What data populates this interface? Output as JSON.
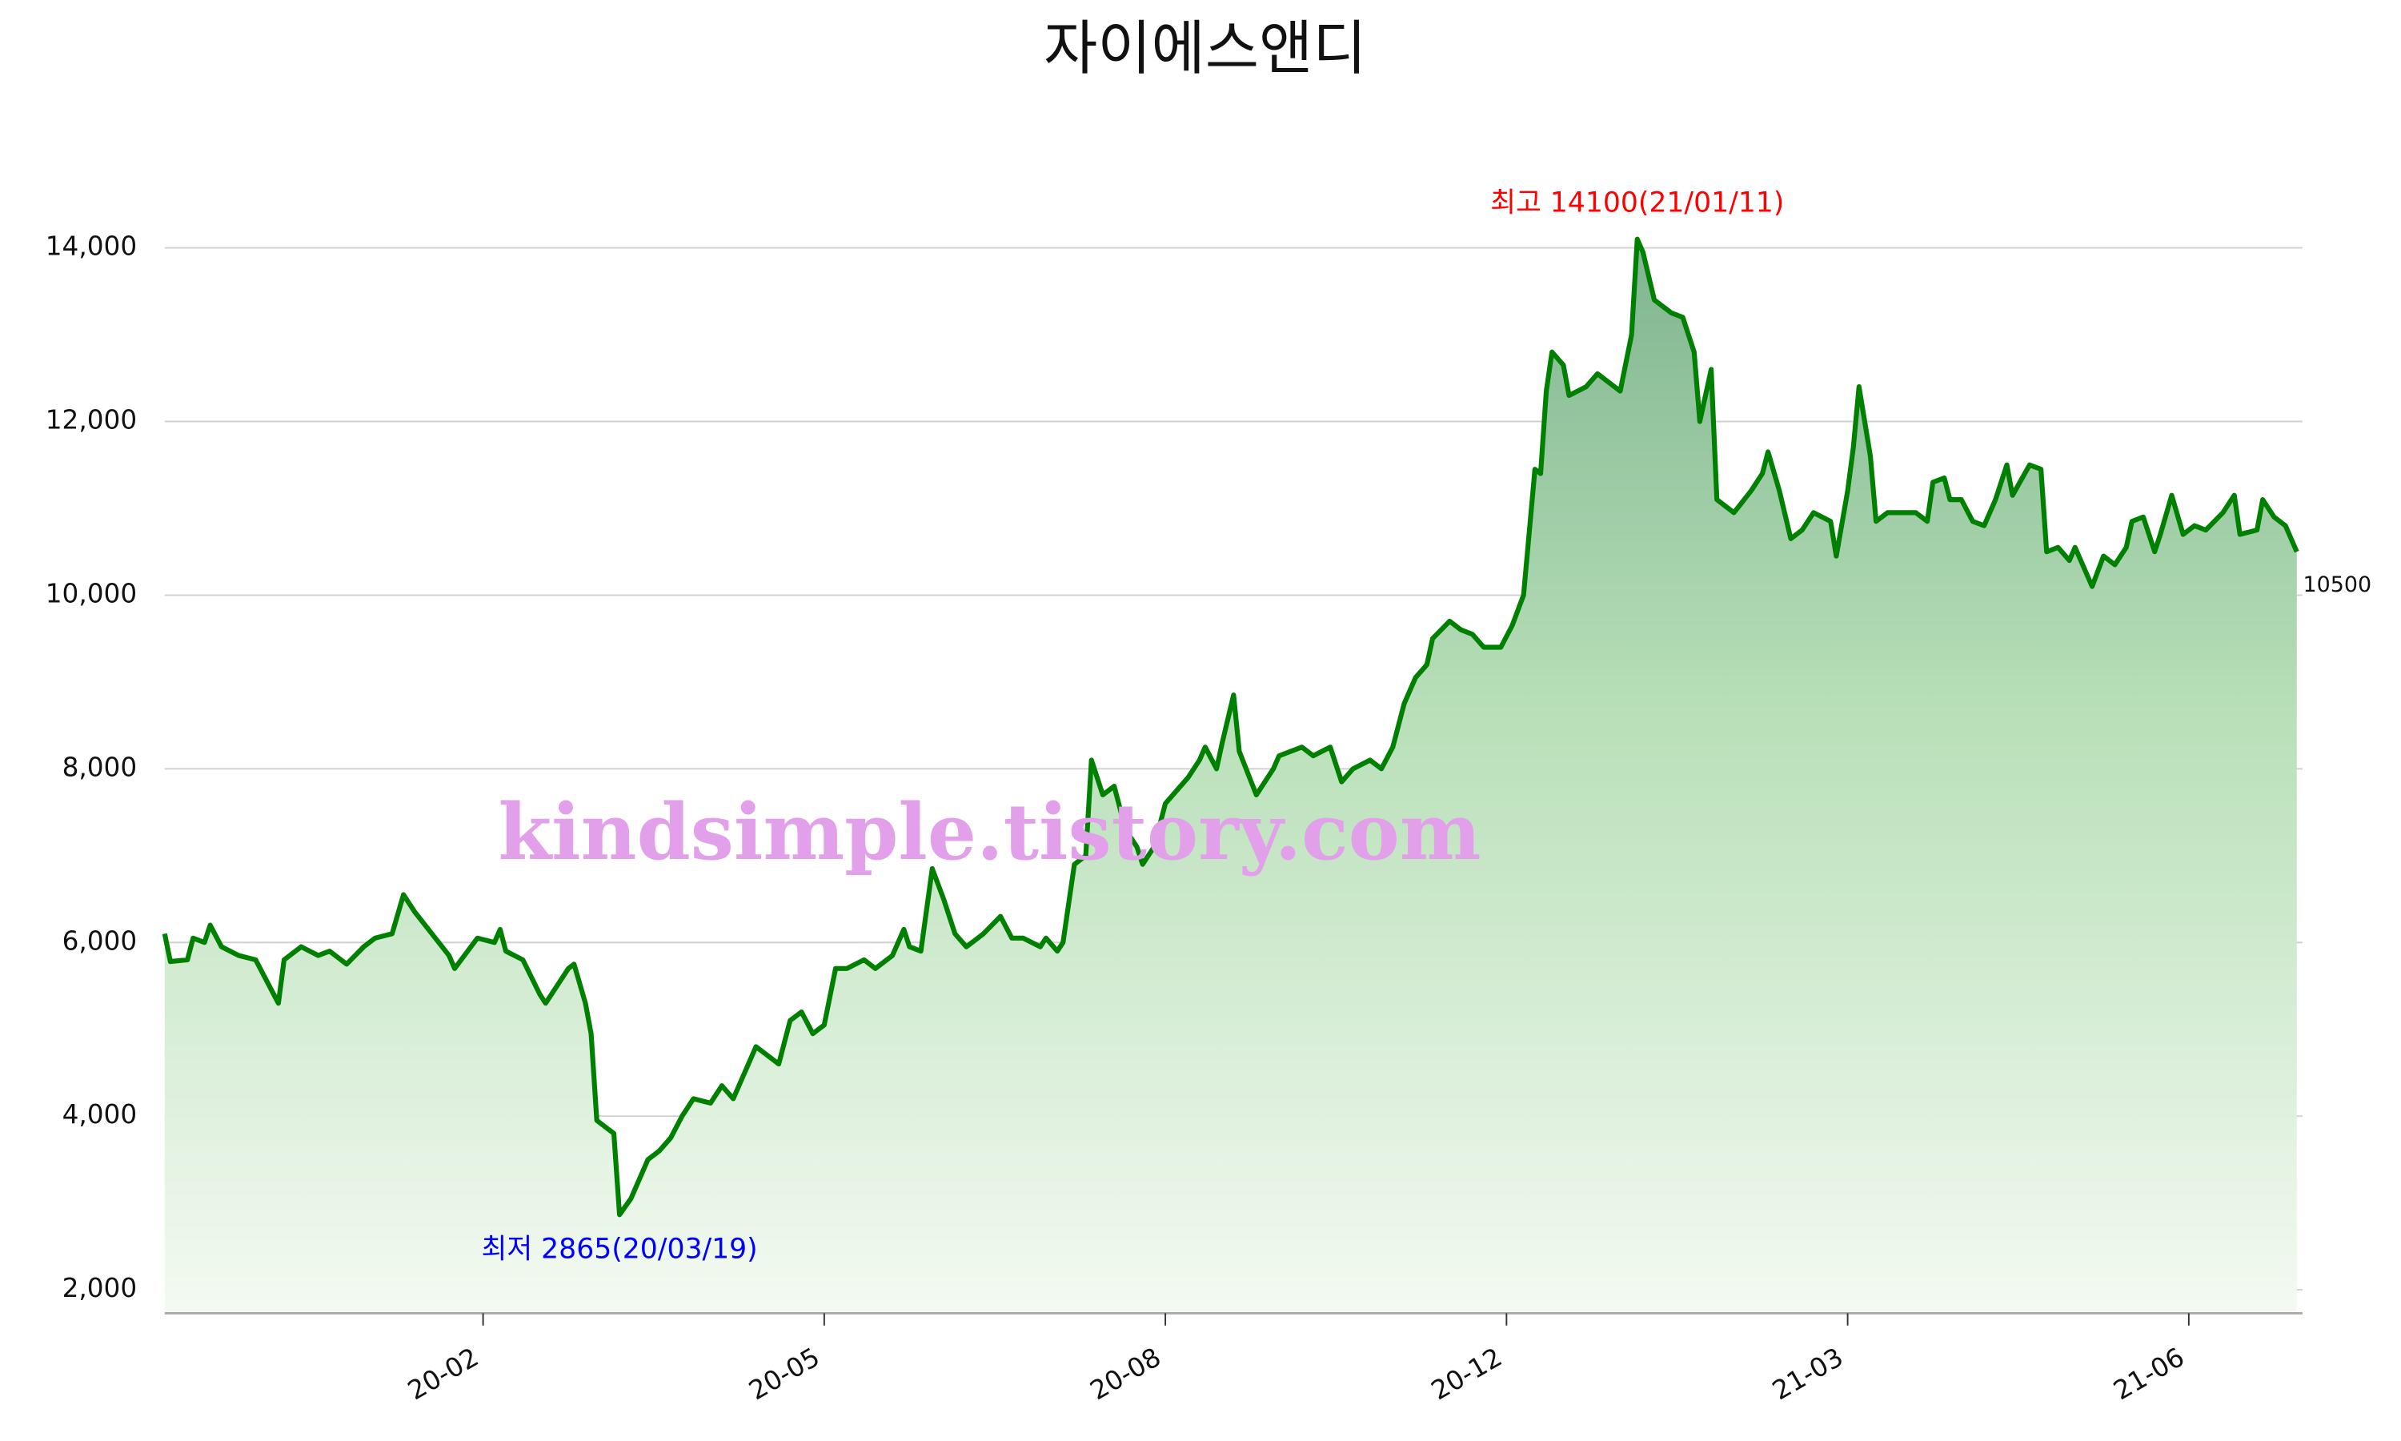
{
  "chart_data": {
    "type": "area",
    "title": "자이에스앤디",
    "watermark": "kindsimple.tistory.com",
    "watermark_color": "#e3a0ea",
    "series": [
      {
        "name": "자이에스앤디",
        "color": "#008000",
        "x": [
          0,
          1,
          4,
          5,
          7,
          8,
          10,
          13,
          16,
          18,
          20,
          21,
          24,
          27,
          29,
          32,
          35,
          37,
          40,
          42,
          44,
          47,
          50,
          51,
          55,
          58,
          59,
          60,
          63,
          66,
          67,
          71,
          72,
          74,
          75,
          76,
          79,
          80,
          82,
          85,
          87,
          89,
          91,
          93,
          96,
          98,
          100,
          102,
          104,
          108,
          110,
          112,
          114,
          116,
          118,
          120,
          123,
          125,
          128,
          130,
          131,
          133,
          135,
          137,
          139,
          141,
          144,
          147,
          149,
          151,
          154,
          155,
          157,
          158,
          160,
          162,
          163,
          165,
          167,
          169,
          171,
          172,
          174,
          176,
          178,
          180,
          182,
          183,
          185,
          186,
          188,
          189,
          192,
          195,
          196,
          200,
          202,
          205,
          207,
          209,
          212,
          214,
          216,
          218,
          220,
          222,
          223,
          226,
          228,
          230,
          232,
          235,
          237,
          239,
          241,
          242,
          243,
          244,
          246,
          247,
          250,
          252,
          254,
          256,
          258,
          259,
          260,
          262,
          264,
          265,
          267,
          269,
          270,
          272,
          273,
          276,
          279,
          281,
          282,
          284,
          286,
          288,
          290,
          293,
          294,
          296,
          297,
          298,
          300,
          301,
          303,
          308,
          310,
          311,
          313,
          314,
          316,
          318,
          320,
          322,
          324,
          325,
          328,
          330,
          331,
          333,
          335,
          336,
          339,
          341,
          343,
          345,
          346,
          348,
          350,
          351,
          353,
          355,
          357,
          359,
          362,
          364,
          365,
          368,
          369,
          371,
          373,
          374,
          375
        ],
        "values": [
          6100,
          5780,
          5800,
          6050,
          6000,
          6200,
          5950,
          5850,
          5800,
          5550,
          5300,
          5800,
          5950,
          5850,
          5900,
          5750,
          5950,
          6050,
          6100,
          6550,
          6350,
          6100,
          5850,
          5700,
          6050,
          6000,
          6150,
          5900,
          5800,
          5400,
          5300,
          5700,
          5750,
          5300,
          4950,
          3950,
          3800,
          2865,
          3050,
          3500,
          3600,
          3750,
          4000,
          4200,
          4150,
          4350,
          4200,
          4500,
          4800,
          4600,
          5100,
          5200,
          4950,
          5050,
          5700,
          5700,
          5800,
          5700,
          5850,
          6150,
          5950,
          5900,
          6850,
          6500,
          6100,
          5950,
          6100,
          6300,
          6050,
          6050,
          5950,
          6050,
          5900,
          6000,
          6900,
          7000,
          8100,
          7700,
          7800,
          7300,
          7100,
          6900,
          7100,
          7600,
          7750,
          7900,
          8100,
          8250,
          8000,
          8300,
          8850,
          8200,
          7700,
          8000,
          8150,
          8250,
          8150,
          8250,
          7850,
          8000,
          8100,
          8000,
          8250,
          8750,
          9050,
          9200,
          9500,
          9700,
          9600,
          9550,
          9400,
          9400,
          9650,
          10000,
          11450,
          11400,
          12350,
          12800,
          12650,
          12300,
          12400,
          12550,
          12450,
          12350,
          13000,
          14100,
          13950,
          13400,
          13300,
          13250,
          13200,
          12800,
          12000,
          12600,
          11100,
          10950,
          11200,
          11400,
          11650,
          11200,
          10650,
          10750,
          10950,
          10850,
          10450,
          11200,
          11700,
          12400,
          11600,
          10850,
          10950,
          10950,
          10850,
          11300,
          11350,
          11100,
          11100,
          10850,
          10800,
          11100,
          11500,
          11150,
          11500,
          11450,
          10500,
          10550,
          10400,
          10550,
          10100,
          10450,
          10350,
          10550,
          10850,
          10900,
          10500,
          10700,
          11150,
          10700,
          10800,
          10750,
          10950,
          11150,
          10700,
          10750,
          11100,
          10900,
          10800,
          10650,
          10500
        ]
      }
    ],
    "xlim": [
      0,
      376
    ],
    "xticks": [
      {
        "value": 56,
        "label": "20-02"
      },
      {
        "value": 116,
        "label": "20-05"
      },
      {
        "value": 176,
        "label": "20-08"
      },
      {
        "value": 236,
        "label": "20-12"
      },
      {
        "value": 296,
        "label": "21-03"
      },
      {
        "value": 356,
        "label": "21-06"
      }
    ],
    "ylim": [
      1730,
      14700
    ],
    "yticks": [
      {
        "value": 2000,
        "label": "2,000"
      },
      {
        "value": 4000,
        "label": "4,000"
      },
      {
        "value": 6000,
        "label": "6,000"
      },
      {
        "value": 8000,
        "label": "8,000"
      },
      {
        "value": 10000,
        "label": "10,000"
      },
      {
        "value": 12000,
        "label": "12,000"
      },
      {
        "value": 14000,
        "label": "14,000"
      }
    ],
    "grid": true,
    "annotations": [
      {
        "text": "최고 14100(21/01/11)",
        "x": 259,
        "y": 14100,
        "color": "#ff0000"
      },
      {
        "text": "최저 2865(20/03/19)",
        "x": 80,
        "y": 2865,
        "color": "#0000ff"
      }
    ]
  }
}
